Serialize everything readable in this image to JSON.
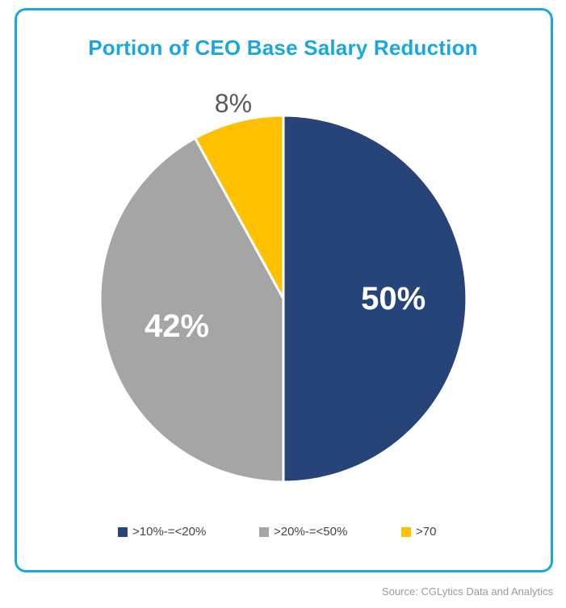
{
  "chart_data": {
    "type": "pie",
    "title": "Portion of CEO Base Salary Reduction",
    "slices": [
      {
        "label": ">10%-=<20%",
        "value": 50,
        "display": "50%",
        "color": "#264478",
        "label_color": "#ffffff"
      },
      {
        "label": ">20%-=<50%",
        "value": 42,
        "display": "42%",
        "color": "#a5a5a5",
        "label_color": "#ffffff"
      },
      {
        "label": ">70",
        "value": 8,
        "display": "8%",
        "color": "#ffc000",
        "label_color": "#595959"
      }
    ],
    "legend_position": "bottom"
  },
  "source": "Source: CGLytics Data and Analytics",
  "colors": {
    "frame_border": "#1aa7e0",
    "title": "#1aa7e0"
  }
}
